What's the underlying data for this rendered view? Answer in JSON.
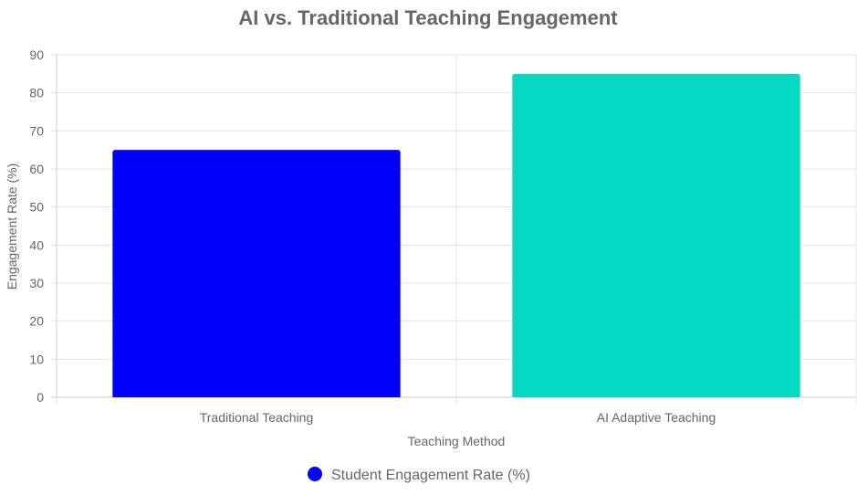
{
  "chart_data": {
    "type": "bar",
    "title": "AI vs. Traditional Teaching Engagement",
    "xlabel": "Teaching Method",
    "ylabel": "Engagement Rate (%)",
    "categories": [
      "Traditional Teaching",
      "AI Adaptive Teaching"
    ],
    "series": [
      {
        "name": "Student Engagement Rate (%)",
        "values": [
          65,
          85
        ],
        "colors": [
          "#0000ff",
          "#04d9c4"
        ]
      }
    ],
    "ylim": [
      0,
      90
    ],
    "yticks": [
      0,
      10,
      20,
      30,
      40,
      50,
      60,
      70,
      80,
      90
    ],
    "grid": true,
    "legend": "bottom"
  }
}
